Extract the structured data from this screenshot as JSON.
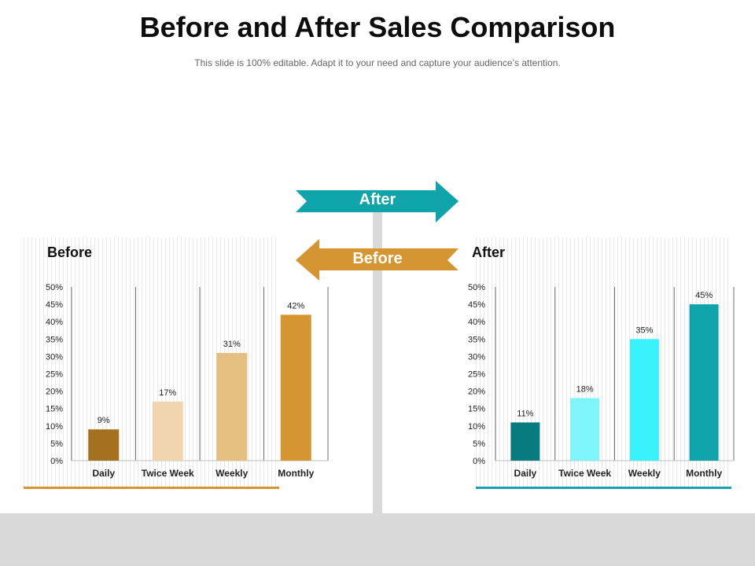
{
  "title": "Before and After Sales Comparison",
  "subtitle": "This slide is 100% editable. Adapt it to your need and capture your audience’s attention.",
  "arrows": {
    "after_label": "After",
    "before_label": "Before",
    "after_color": "#0fa3aa",
    "before_color": "#d59530"
  },
  "colors": {
    "before_underline": "#d59530",
    "after_underline": "#1c9fb0"
  },
  "chart_data": [
    {
      "type": "bar",
      "title": "Before",
      "categories": [
        "Daily",
        "Twice Week",
        "Weekly",
        "Monthly"
      ],
      "values": [
        9,
        17,
        31,
        42
      ],
      "data_labels": [
        "9%",
        "17%",
        "31%",
        "42%"
      ],
      "bar_colors": [
        "#a5711f",
        "#f0d5ae",
        "#e5bf80",
        "#d59530"
      ],
      "y_ticks": [
        "0%",
        "5%",
        "10%",
        "15%",
        "20%",
        "25%",
        "30%",
        "35%",
        "40%",
        "45%",
        "50%"
      ],
      "ylim": [
        0,
        50
      ],
      "xlabel": "",
      "ylabel": "",
      "grid": false
    },
    {
      "type": "bar",
      "title": "After",
      "categories": [
        "Daily",
        "Twice Week",
        "Weekly",
        "Monthly"
      ],
      "values": [
        11,
        18,
        35,
        45
      ],
      "data_labels": [
        "11%",
        "18%",
        "35%",
        "45%"
      ],
      "bar_colors": [
        "#077b80",
        "#7df5fa",
        "#38f3fc",
        "#0fa3aa"
      ],
      "y_ticks": [
        "0%",
        "5%",
        "10%",
        "15%",
        "20%",
        "25%",
        "30%",
        "35%",
        "40%",
        "45%",
        "50%"
      ],
      "ylim": [
        0,
        50
      ],
      "xlabel": "",
      "ylabel": "",
      "grid": false
    }
  ]
}
